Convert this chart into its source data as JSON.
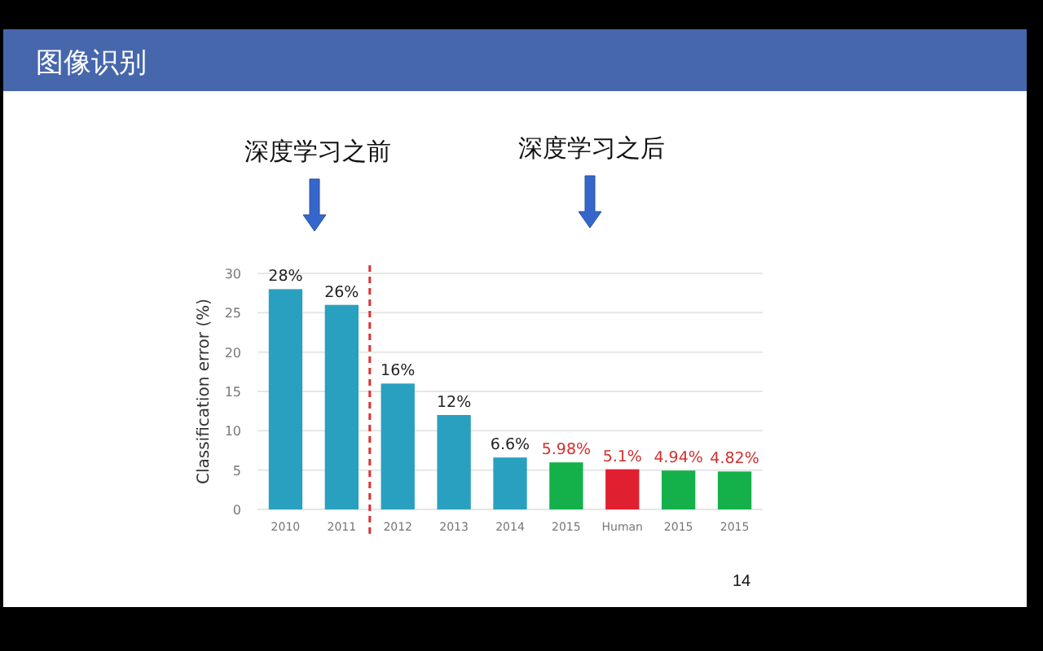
{
  "chart_data": {
    "type": "bar",
    "title": "图像识别",
    "ylabel": "Classification error (%)",
    "categories": [
      "2010",
      "2011",
      "2012",
      "2013",
      "2014",
      "2015",
      "Human",
      "2015",
      "2015"
    ],
    "values": [
      28,
      26,
      16,
      12,
      6.6,
      5.98,
      5.1,
      4.94,
      4.82
    ],
    "colors": [
      "#2aa0c0",
      "#2aa0c0",
      "#2aa0c0",
      "#2aa0c0",
      "#2aa0c0",
      "#14b04a",
      "#e02030",
      "#14b04a",
      "#14b04a"
    ],
    "value_labels": [
      "28%",
      "26%",
      "16%",
      "12%",
      "6.6%",
      "5.98%",
      "5.1%",
      "4.94%",
      "4.82%"
    ],
    "ylim": [
      0,
      30
    ],
    "yticks": [
      0,
      5,
      10,
      15,
      20,
      25,
      30
    ],
    "grid": "y",
    "annotations": [
      "深度学习之前",
      "深度学习之后",
      "14"
    ]
  }
}
